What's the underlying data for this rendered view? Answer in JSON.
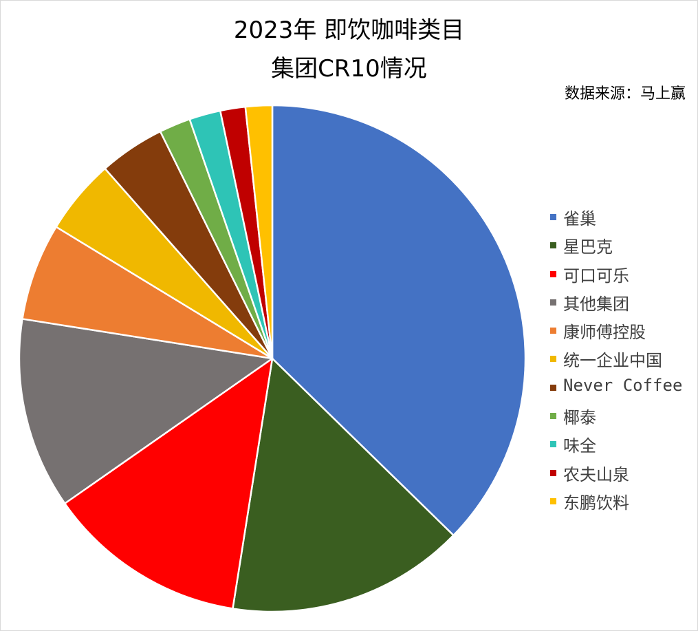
{
  "chart_data": {
    "type": "pie",
    "title": [
      "2023年 即饮咖啡类目",
      "集团CR10情况"
    ],
    "source": "数据来源：马上赢",
    "legend_position": "right",
    "categories": [
      "雀巢",
      "星巴克",
      "可口可乐",
      "其他集团",
      "康师傅控股",
      "统一企业中国",
      "Never Coffee",
      "椰泰",
      "味全",
      "农夫山泉",
      "东鹏饮料"
    ],
    "values": [
      37.3,
      15.2,
      12.8,
      12.2,
      6.2,
      4.8,
      4.2,
      2.0,
      2.0,
      1.6,
      1.7
    ],
    "colors": [
      "#4472C4",
      "#3A5E20",
      "#FF0000",
      "#767171",
      "#ED7D31",
      "#F0B800",
      "#843C0C",
      "#70AD47",
      "#2EC4B6",
      "#C00000",
      "#FFC000"
    ]
  }
}
